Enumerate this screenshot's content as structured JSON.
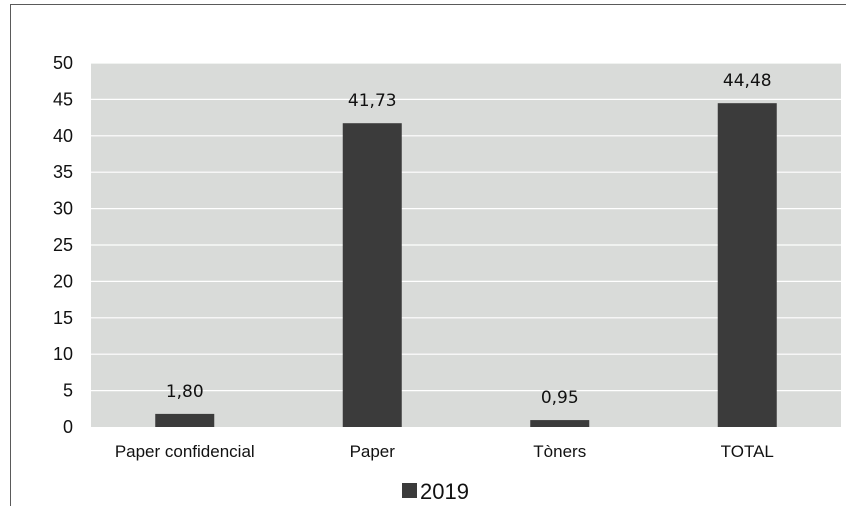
{
  "chart_data": {
    "type": "bar",
    "categories": [
      "Paper confidencial",
      "Paper",
      "Tòners",
      "TOTAL"
    ],
    "series": [
      {
        "name": "2019",
        "values": [
          1.8,
          41.73,
          0.95,
          44.48
        ]
      }
    ],
    "data_labels": [
      "1,80",
      "41,73",
      "0,95",
      "44,48"
    ],
    "y_ticks": [
      "0",
      "5",
      "10",
      "15",
      "20",
      "25",
      "30",
      "35",
      "40",
      "45",
      "50"
    ],
    "ylim": [
      0,
      50
    ],
    "grid": true,
    "legend": "bottom",
    "colors": {
      "bar": "#3b3b3b",
      "plot_bg": "#d9dbd9",
      "grid": "#ffffff"
    }
  }
}
